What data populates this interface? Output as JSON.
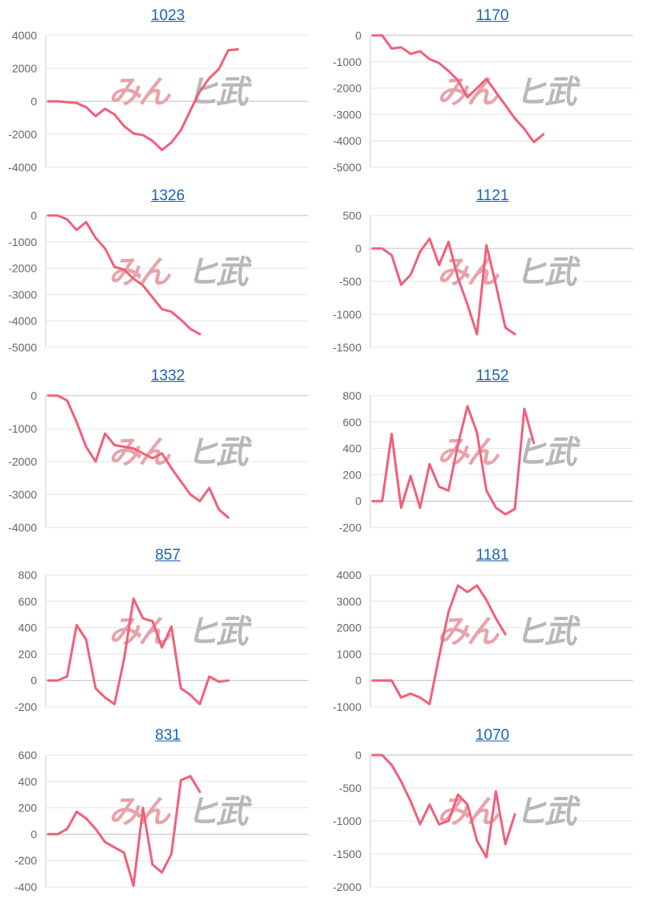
{
  "watermark": {
    "part1": "みん",
    "part2": "ヒ武"
  },
  "colors": {
    "line": "#f0607a",
    "grid": "#e4e4e4",
    "axis": "#cfcfcf",
    "title": "#1a64b4"
  },
  "chart_data": [
    {
      "type": "line",
      "title": "1023",
      "ylim": [
        -4000,
        4000
      ],
      "yticks": [
        4000,
        2000,
        0,
        -2000,
        -4000
      ],
      "values": [
        0,
        0,
        -50,
        -100,
        -350,
        -900,
        -450,
        -800,
        -1500,
        -1950,
        -2050,
        -2400,
        -2950,
        -2500,
        -1750,
        -550,
        600,
        1400,
        1950,
        3100,
        3150
      ]
    },
    {
      "type": "line",
      "title": "1170",
      "ylim": [
        -5000,
        0
      ],
      "yticks": [
        0,
        -1000,
        -2000,
        -3000,
        -4000,
        -5000
      ],
      "values": [
        0,
        0,
        -500,
        -450,
        -700,
        -600,
        -900,
        -1050,
        -1350,
        -1700,
        -2350,
        -2000,
        -1650,
        -2150,
        -2650,
        -3150,
        -3550,
        -4050,
        -3750
      ]
    },
    {
      "type": "line",
      "title": "1326",
      "ylim": [
        -5000,
        0
      ],
      "yticks": [
        0,
        -1000,
        -2000,
        -3000,
        -4000,
        -5000
      ],
      "values": [
        0,
        0,
        -150,
        -550,
        -250,
        -850,
        -1250,
        -1950,
        -2050,
        -2400,
        -2650,
        -3100,
        -3550,
        -3650,
        -3950,
        -4300,
        -4500
      ]
    },
    {
      "type": "line",
      "title": "1121",
      "ylim": [
        -1500,
        500
      ],
      "yticks": [
        500,
        0,
        -500,
        -1000,
        -1500
      ],
      "values": [
        0,
        0,
        -100,
        -550,
        -400,
        -50,
        150,
        -250,
        100,
        -450,
        -850,
        -1300,
        50,
        -550,
        -1200,
        -1300
      ]
    },
    {
      "type": "line",
      "title": "1332",
      "ylim": [
        -4000,
        0
      ],
      "yticks": [
        0,
        -1000,
        -2000,
        -3000,
        -4000
      ],
      "values": [
        0,
        0,
        -150,
        -800,
        -1550,
        -2000,
        -1150,
        -1500,
        -1550,
        -1600,
        -1750,
        -1900,
        -1750,
        -2200,
        -2600,
        -3000,
        -3200,
        -2800,
        -3450,
        -3700
      ]
    },
    {
      "type": "line",
      "title": "1152",
      "ylim": [
        -200,
        800
      ],
      "yticks": [
        800,
        600,
        400,
        200,
        0,
        -200
      ],
      "values": [
        0,
        0,
        510,
        -50,
        190,
        -50,
        280,
        110,
        80,
        430,
        720,
        520,
        80,
        -50,
        -100,
        -60,
        700,
        440
      ]
    },
    {
      "type": "line",
      "title": "857",
      "ylim": [
        -200,
        800
      ],
      "yticks": [
        800,
        600,
        400,
        200,
        0,
        -200
      ],
      "values": [
        0,
        0,
        30,
        420,
        310,
        -60,
        -130,
        -180,
        160,
        620,
        470,
        450,
        250,
        410,
        -60,
        -110,
        -180,
        30,
        -10,
        0
      ]
    },
    {
      "type": "line",
      "title": "1181",
      "ylim": [
        -1000,
        4000
      ],
      "yticks": [
        4000,
        3000,
        2000,
        1000,
        0,
        -1000
      ],
      "values": [
        0,
        0,
        0,
        -650,
        -500,
        -650,
        -900,
        900,
        2600,
        3600,
        3350,
        3600,
        3050,
        2350,
        1750
      ]
    },
    {
      "type": "line",
      "title": "831",
      "ylim": [
        -400,
        600
      ],
      "yticks": [
        600,
        400,
        200,
        0,
        -200,
        -400
      ],
      "values": [
        0,
        0,
        40,
        170,
        120,
        40,
        -60,
        -100,
        -140,
        -390,
        200,
        -230,
        -290,
        -150,
        410,
        440,
        320
      ]
    },
    {
      "type": "line",
      "title": "1070",
      "ylim": [
        -2000,
        0
      ],
      "yticks": [
        0,
        -500,
        -1000,
        -1500,
        -2000
      ],
      "values": [
        0,
        0,
        -150,
        -400,
        -700,
        -1050,
        -750,
        -1050,
        -1000,
        -600,
        -750,
        -1300,
        -1550,
        -550,
        -1350,
        -900
      ]
    }
  ]
}
